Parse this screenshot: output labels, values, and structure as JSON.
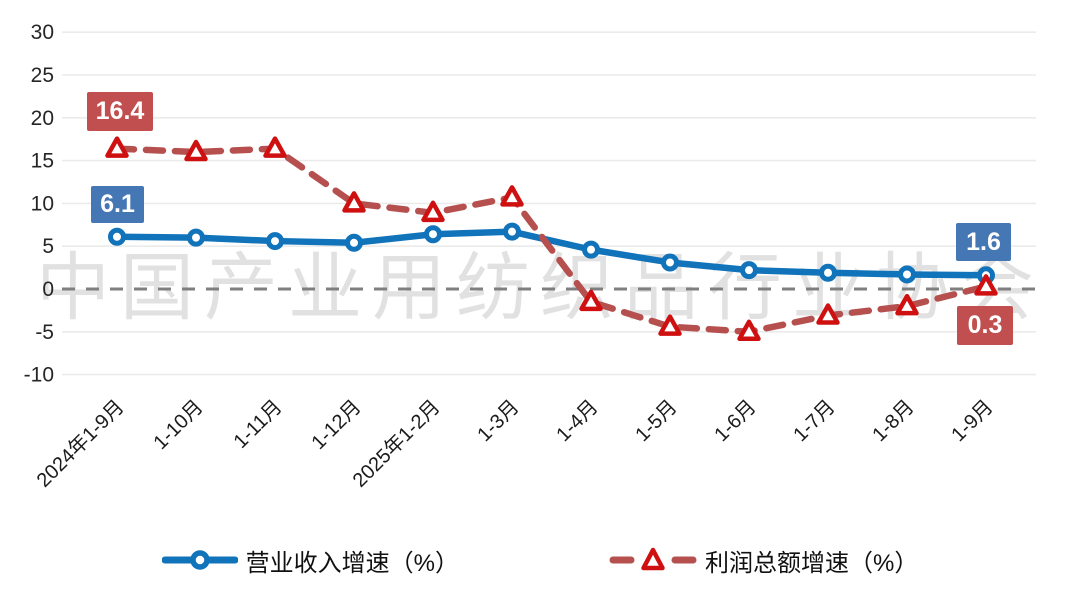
{
  "watermark": {
    "text": "中国产业用纺织品行业协会"
  },
  "chart_data": {
    "type": "line",
    "categories": [
      "2024年1-9月",
      "1-10月",
      "1-11月",
      "1-12月",
      "2025年1-2月",
      "1-3月",
      "1-4月",
      "1-5月",
      "1-6月",
      "1-7月",
      "1-8月",
      "1-9月"
    ],
    "series": [
      {
        "name": "营业收入增速（%）",
        "values": [
          6.1,
          6.0,
          5.6,
          5.4,
          6.4,
          6.7,
          4.6,
          3.1,
          2.2,
          1.9,
          1.7,
          1.6
        ],
        "color": "#1173ba",
        "line_style": "solid",
        "marker": "circle",
        "marker_color": "#1173ba"
      },
      {
        "name": "利润总额增速（%）",
        "values": [
          16.4,
          16.0,
          16.4,
          10.0,
          8.9,
          10.7,
          -1.5,
          -4.4,
          -5.0,
          -3.1,
          -2.0,
          0.3
        ],
        "color": "#b5504e",
        "line_style": "dashed",
        "marker": "triangle",
        "marker_color": "#cf1010"
      }
    ],
    "ylim": [
      -10,
      30
    ],
    "yticks": [
      30,
      25,
      20,
      15,
      10,
      5,
      0,
      -5,
      -10
    ],
    "grid": true,
    "zero_line_style": "dashed",
    "legend_position": "bottom",
    "annotations": [
      {
        "text": "16.4",
        "series": "利润总额增速（%）",
        "point": "2024年1-9月",
        "bg": "#c14f4f"
      },
      {
        "text": "6.1",
        "series": "营业收入增速（%）",
        "point": "2024年1-9月",
        "bg": "#4477b3"
      },
      {
        "text": "1.6",
        "series": "营业收入增速（%）",
        "point": "1-9月",
        "bg": "#4477b3"
      },
      {
        "text": "0.3",
        "series": "利润总额增速（%）",
        "point": "1-9月",
        "bg": "#c14f4f"
      }
    ]
  },
  "legend": {
    "items": [
      {
        "label": "营业收入增速（%）"
      },
      {
        "label": "利润总额增速（%）"
      }
    ]
  },
  "colors": {
    "grid": "#ebebeb",
    "zero_line": "#7f7f7f",
    "axis_text": "#262626",
    "blue_line": "#1173ba",
    "red_line": "#b5504e",
    "red_marker": "#cf1010",
    "blue_box": "#4477b3",
    "red_box": "#c14f4f"
  }
}
